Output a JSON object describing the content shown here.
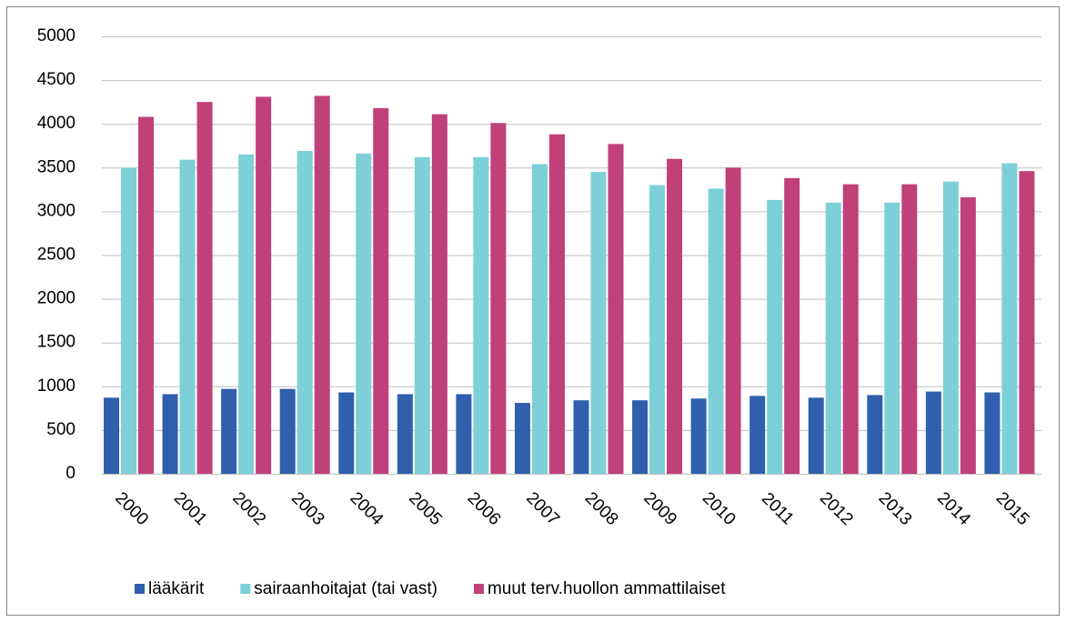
{
  "chart_data": {
    "type": "bar",
    "categories": [
      "2000",
      "2001",
      "2002",
      "2003",
      "2004",
      "2005",
      "2006",
      "2007",
      "2008",
      "2009",
      "2010",
      "2011",
      "2012",
      "2013",
      "2014",
      "2015"
    ],
    "series": [
      {
        "name": "lääkärit",
        "color": "#2f5fad",
        "values": [
          870,
          910,
          970,
          970,
          930,
          910,
          910,
          810,
          840,
          840,
          860,
          890,
          870,
          900,
          940,
          930
        ]
      },
      {
        "name": "sairaanhoitajat (tai vast)",
        "color": "#7dd0d8",
        "values": [
          3500,
          3590,
          3650,
          3690,
          3660,
          3620,
          3620,
          3540,
          3450,
          3300,
          3260,
          3130,
          3100,
          3100,
          3340,
          3550
        ]
      },
      {
        "name": "muut terv.huollon ammattilaiset",
        "color": "#c0407a",
        "values": [
          4080,
          4250,
          4310,
          4320,
          4180,
          4110,
          4010,
          3880,
          3770,
          3600,
          3500,
          3380,
          3310,
          3310,
          3160,
          3460
        ]
      }
    ],
    "ylim": [
      0,
      5000
    ],
    "yticks": [
      0,
      500,
      1000,
      1500,
      2000,
      2500,
      3000,
      3500,
      4000,
      4500,
      5000
    ],
    "grid": true,
    "legend": "bottom"
  }
}
